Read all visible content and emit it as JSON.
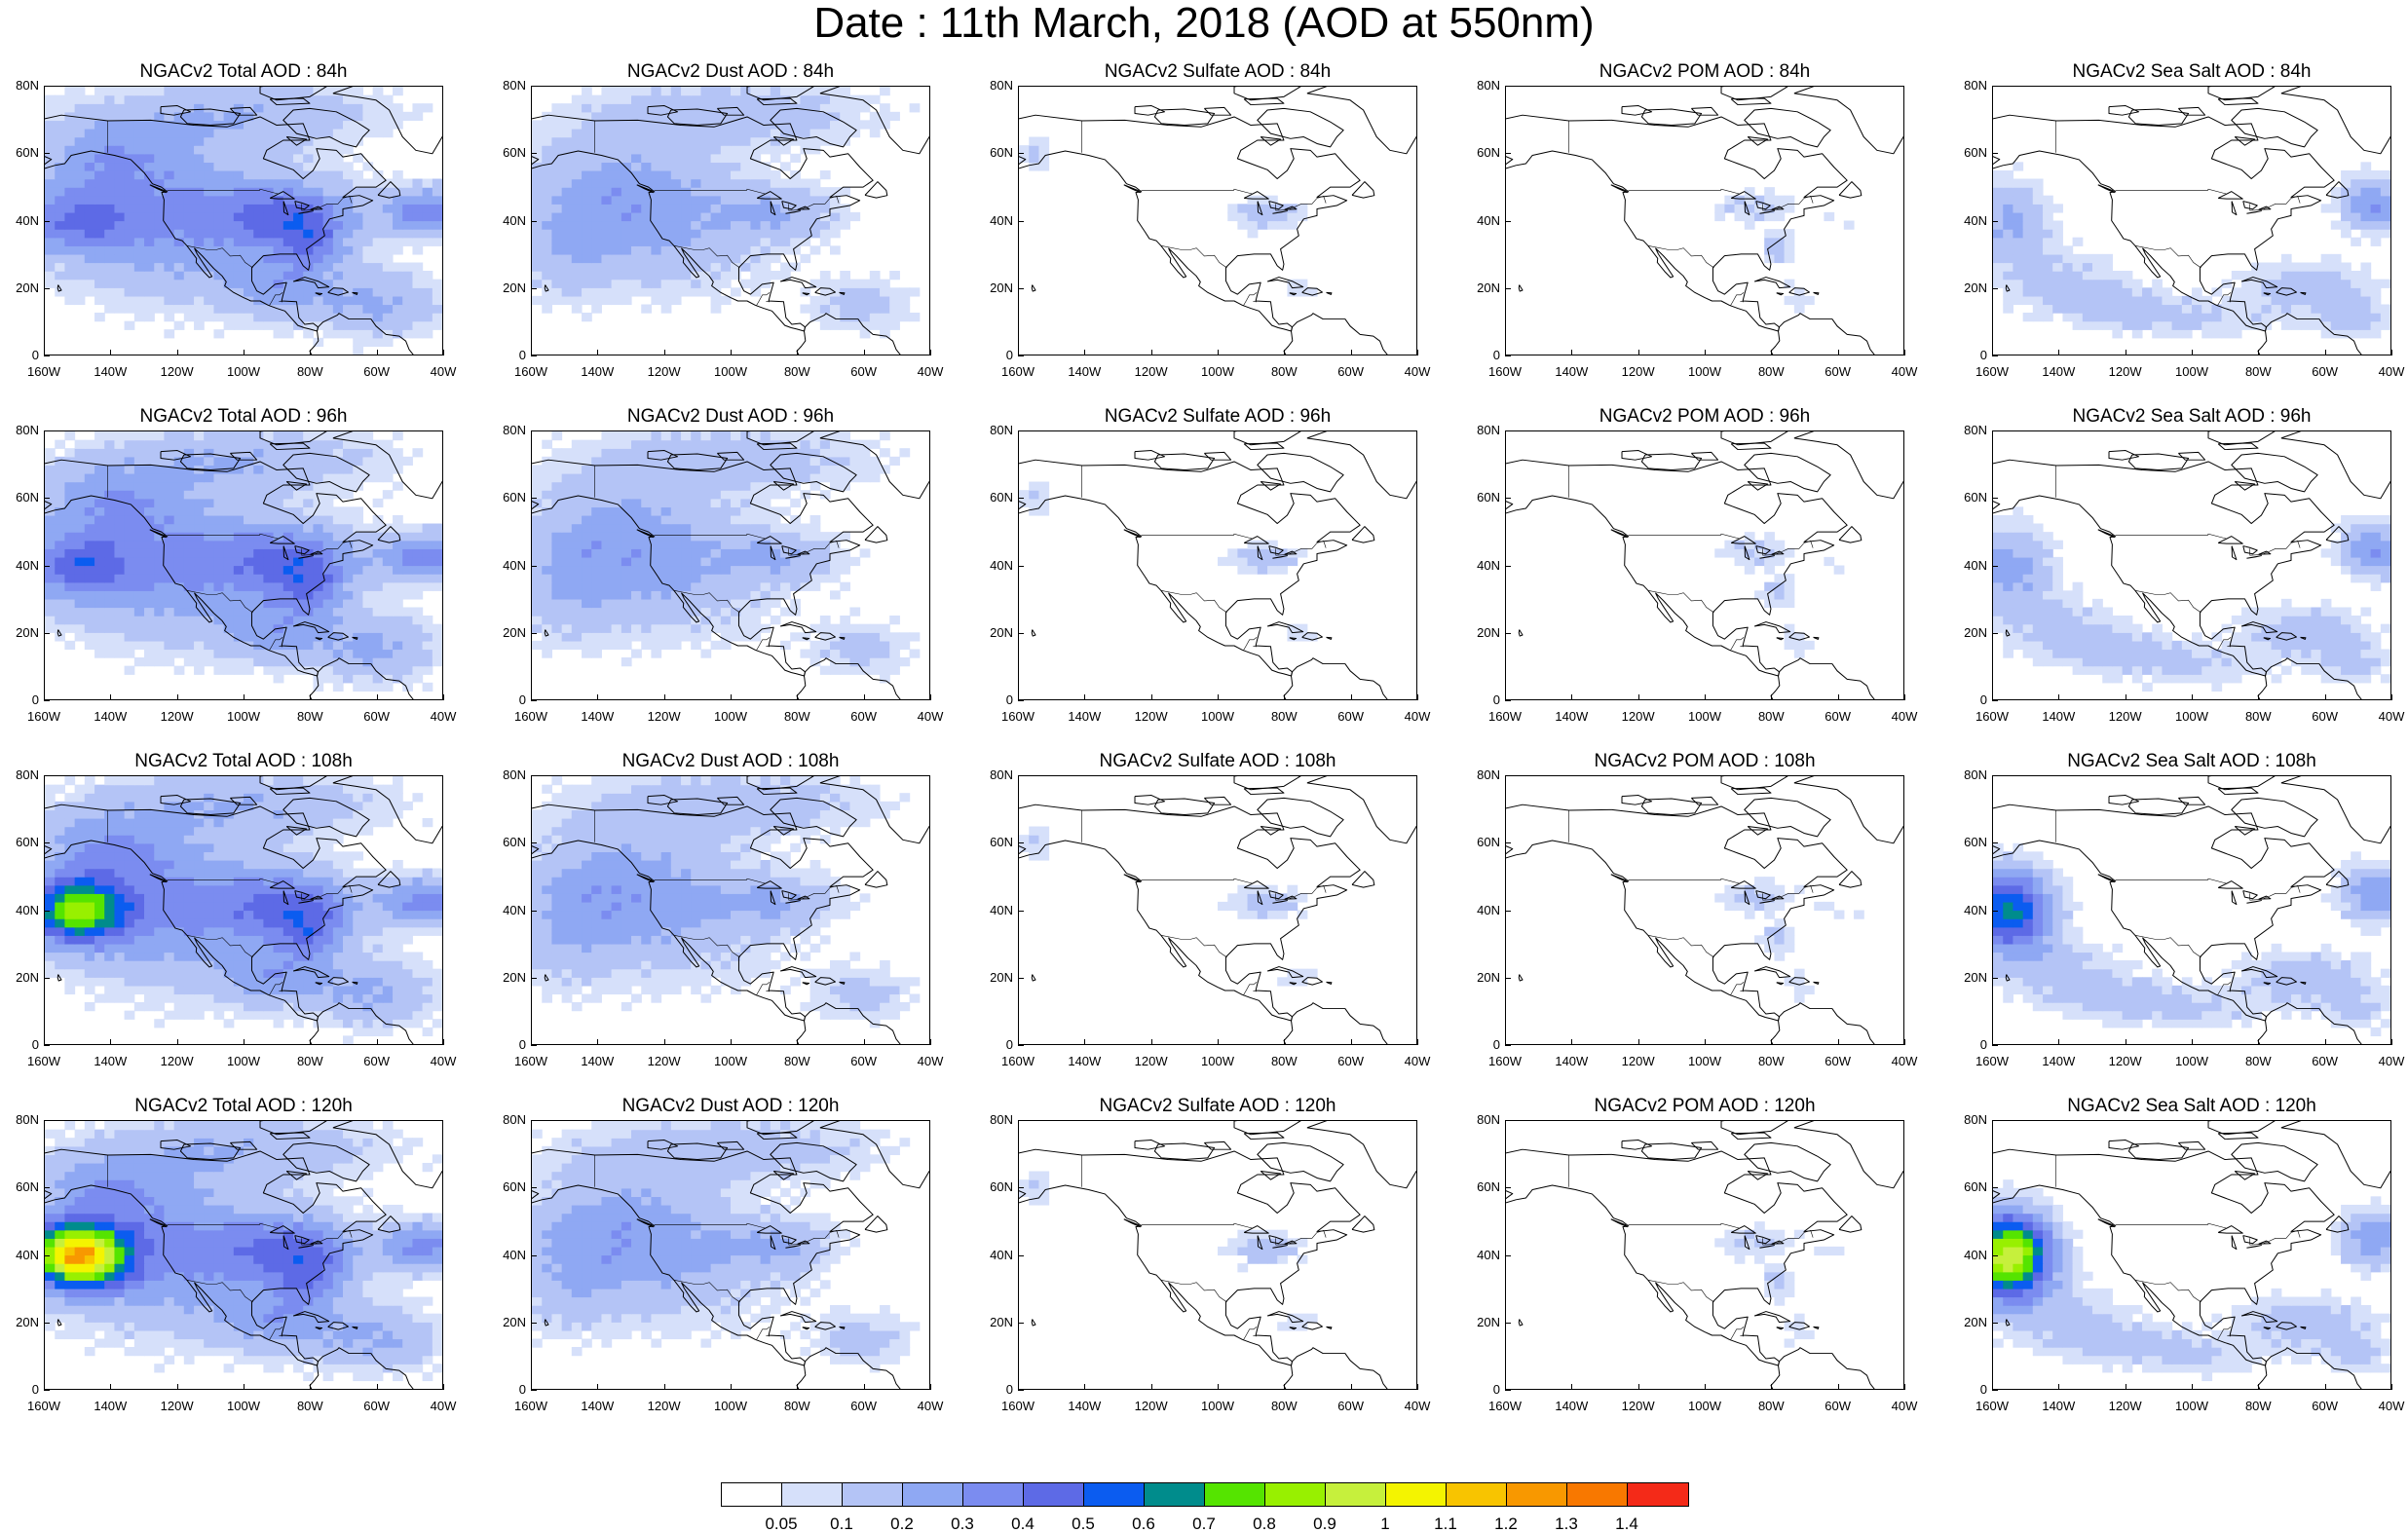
{
  "title": "Date : 11th March, 2018 (AOD at 550nm)",
  "y_ticks": [
    "80N",
    "60N",
    "40N",
    "20N",
    "0"
  ],
  "x_ticks": [
    "160W",
    "140W",
    "120W",
    "100W",
    "80W",
    "60W",
    "40W"
  ],
  "panels": [
    {
      "title": "NGACv2 Total AOD : 84h",
      "species": "total"
    },
    {
      "title": "NGACv2 Dust AOD : 84h",
      "species": "dust"
    },
    {
      "title": "NGACv2 Sulfate AOD : 84h",
      "species": "sulfate"
    },
    {
      "title": "NGACv2 POM AOD : 84h",
      "species": "pom"
    },
    {
      "title": "NGACv2 Sea Salt AOD : 84h",
      "species": "seasalt"
    },
    {
      "title": "NGACv2 Total AOD : 96h",
      "species": "total"
    },
    {
      "title": "NGACv2 Dust AOD : 96h",
      "species": "dust"
    },
    {
      "title": "NGACv2 Sulfate AOD : 96h",
      "species": "sulfate"
    },
    {
      "title": "NGACv2 POM AOD : 96h",
      "species": "pom"
    },
    {
      "title": "NGACv2 Sea Salt AOD : 96h",
      "species": "seasalt"
    },
    {
      "title": "NGACv2 Total AOD : 108h",
      "species": "total"
    },
    {
      "title": "NGACv2 Dust AOD : 108h",
      "species": "dust"
    },
    {
      "title": "NGACv2 Sulfate AOD : 108h",
      "species": "sulfate"
    },
    {
      "title": "NGACv2 POM AOD : 108h",
      "species": "pom"
    },
    {
      "title": "NGACv2 Sea Salt AOD : 108h",
      "species": "seasalt"
    },
    {
      "title": "NGACv2 Total AOD : 120h",
      "species": "total"
    },
    {
      "title": "NGACv2 Dust AOD : 120h",
      "species": "dust"
    },
    {
      "title": "NGACv2 Sulfate AOD : 120h",
      "species": "sulfate"
    },
    {
      "title": "NGACv2 POM AOD : 120h",
      "species": "pom"
    },
    {
      "title": "NGACv2 Sea Salt  AOD : 120h",
      "species": "seasalt"
    }
  ],
  "colorbar": {
    "colors": [
      "#ffffff",
      "#d6e0fa",
      "#b4c4f6",
      "#8fa8f3",
      "#7b8cf0",
      "#5d6ae6",
      "#0b5cf0",
      "#008c8c",
      "#55e400",
      "#98f000",
      "#c6f03c",
      "#f4f400",
      "#f8c400",
      "#f89800",
      "#f87800",
      "#f42a18"
    ],
    "labels": [
      "0.05",
      "0.1",
      "0.2",
      "0.3",
      "0.4",
      "0.5",
      "0.6",
      "0.7",
      "0.8",
      "0.9",
      "1",
      "1.1",
      "1.2",
      "1.3",
      "1.4"
    ]
  }
}
